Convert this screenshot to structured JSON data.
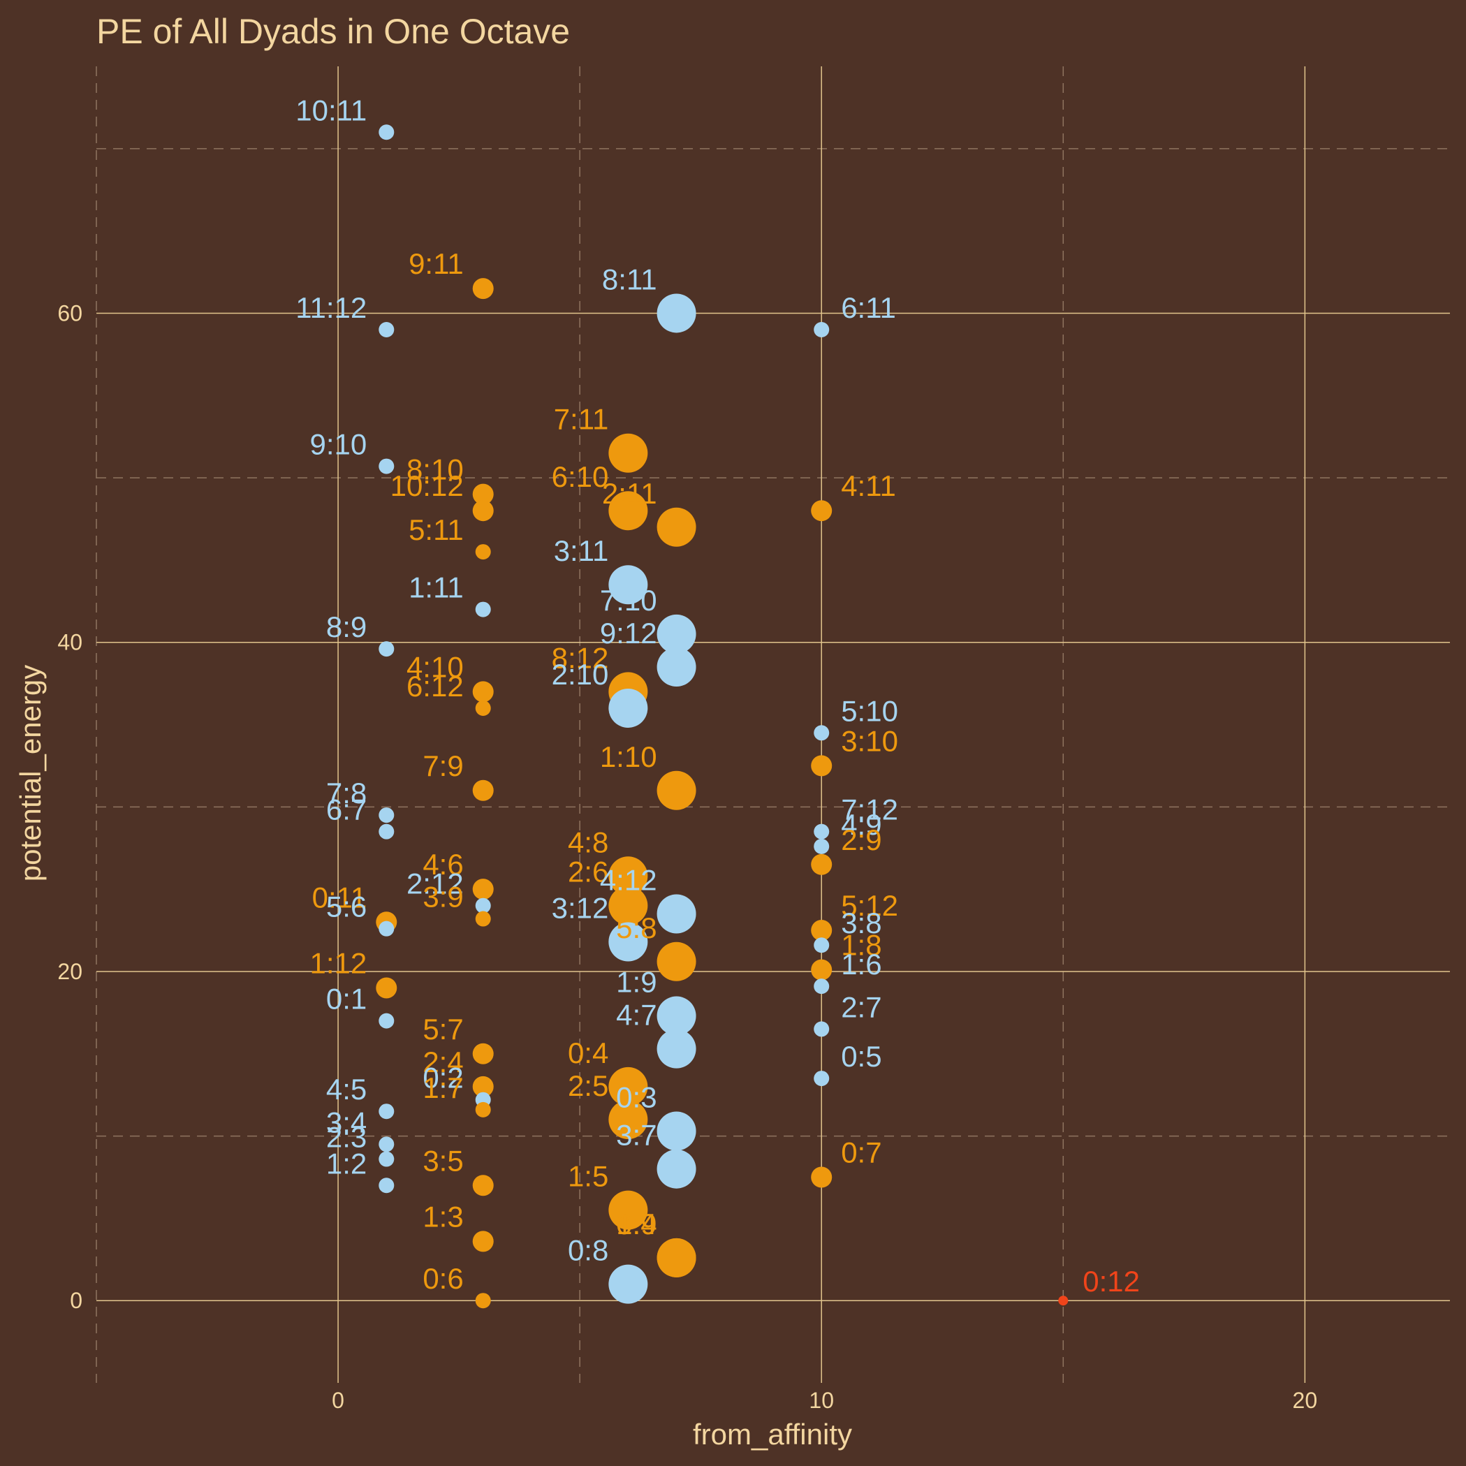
{
  "chart_data": {
    "type": "scatter",
    "title": "PE of All Dyads in One Octave",
    "xlabel": "from_affinity",
    "ylabel": "potential_energy",
    "xlim": [
      -5,
      23
    ],
    "ylim": [
      -5,
      75
    ],
    "xticks": [
      0,
      10,
      20
    ],
    "yticks": [
      0,
      20,
      40,
      60
    ],
    "grid": true,
    "legend": "none",
    "colors": {
      "background": "#4e3226",
      "text": "#f3d6a0",
      "grid_major": "#e2c58d",
      "grid_minor": "#8f7460",
      "blue": "#a6d4f0",
      "orange": "#ee990e",
      "red": "#f0441a"
    },
    "points": [
      {
        "label": "10:11",
        "x": 1,
        "y": 71.0,
        "size": 1,
        "color": "blue"
      },
      {
        "label": "11:12",
        "x": 1,
        "y": 59.0,
        "size": 1,
        "color": "blue"
      },
      {
        "label": "9:10",
        "x": 1,
        "y": 50.7,
        "size": 1,
        "color": "blue"
      },
      {
        "label": "8:9",
        "x": 1,
        "y": 39.6,
        "size": 1,
        "color": "blue"
      },
      {
        "label": "7:8",
        "x": 1,
        "y": 29.5,
        "size": 1,
        "color": "blue"
      },
      {
        "label": "6:7",
        "x": 1,
        "y": 28.5,
        "size": 1,
        "color": "blue"
      },
      {
        "label": "0:11",
        "x": 1,
        "y": 23.0,
        "size": 2,
        "color": "orange"
      },
      {
        "label": "5:6",
        "x": 1,
        "y": 22.6,
        "size": 1,
        "color": "blue"
      },
      {
        "label": "1:12",
        "x": 1,
        "y": 19.0,
        "size": 2,
        "color": "orange"
      },
      {
        "label": "0:1",
        "x": 1,
        "y": 17.0,
        "size": 1,
        "color": "blue"
      },
      {
        "label": "4:5",
        "x": 1,
        "y": 11.5,
        "size": 1,
        "color": "blue"
      },
      {
        "label": "3:4",
        "x": 1,
        "y": 9.5,
        "size": 1,
        "color": "blue"
      },
      {
        "label": "2:3",
        "x": 1,
        "y": 8.6,
        "size": 1,
        "color": "blue"
      },
      {
        "label": "1:2",
        "x": 1,
        "y": 7.0,
        "size": 1,
        "color": "blue"
      },
      {
        "label": "9:11",
        "x": 3,
        "y": 61.5,
        "size": 2,
        "color": "orange"
      },
      {
        "label": "8:10",
        "x": 3,
        "y": 49.0,
        "size": 2,
        "color": "orange"
      },
      {
        "label": "10:12",
        "x": 3,
        "y": 48.0,
        "size": 2,
        "color": "orange"
      },
      {
        "label": "5:11",
        "x": 3,
        "y": 45.5,
        "size": 1,
        "color": "orange"
      },
      {
        "label": "1:11",
        "x": 3,
        "y": 42.0,
        "size": 1,
        "color": "blue"
      },
      {
        "label": "4:10",
        "x": 3,
        "y": 37.0,
        "size": 2,
        "color": "orange"
      },
      {
        "label": "6:12",
        "x": 3,
        "y": 36.0,
        "size": 1,
        "color": "orange"
      },
      {
        "label": "7:9",
        "x": 3,
        "y": 31.0,
        "size": 2,
        "color": "orange"
      },
      {
        "label": "4:6",
        "x": 3,
        "y": 25.0,
        "size": 2,
        "color": "orange"
      },
      {
        "label": "2:12",
        "x": 3,
        "y": 24.0,
        "size": 1,
        "color": "blue"
      },
      {
        "label": "3:9",
        "x": 3,
        "y": 23.2,
        "size": 1,
        "color": "orange"
      },
      {
        "label": "5:7",
        "x": 3,
        "y": 15.0,
        "size": 2,
        "color": "orange"
      },
      {
        "label": "2:4",
        "x": 3,
        "y": 13.0,
        "size": 2,
        "color": "orange"
      },
      {
        "label": "0:2",
        "x": 3,
        "y": 12.2,
        "size": 1,
        "color": "blue"
      },
      {
        "label": "1:7",
        "x": 3,
        "y": 11.6,
        "size": 1,
        "color": "orange"
      },
      {
        "label": "3:5",
        "x": 3,
        "y": 7.0,
        "size": 2,
        "color": "orange"
      },
      {
        "label": "1:3",
        "x": 3,
        "y": 3.6,
        "size": 2,
        "color": "orange"
      },
      {
        "label": "0:6",
        "x": 3,
        "y": 0.0,
        "size": 1,
        "color": "orange"
      },
      {
        "label": "7:11",
        "x": 6,
        "y": 51.5,
        "size": 4,
        "color": "orange"
      },
      {
        "label": "6:10",
        "x": 6,
        "y": 48.0,
        "size": 4,
        "color": "orange"
      },
      {
        "label": "3:11",
        "x": 6,
        "y": 43.5,
        "size": 4,
        "color": "blue"
      },
      {
        "label": "8:12",
        "x": 6,
        "y": 37.0,
        "size": 4,
        "color": "orange"
      },
      {
        "label": "2:10",
        "x": 6,
        "y": 36.0,
        "size": 4,
        "color": "blue"
      },
      {
        "label": "4:8",
        "x": 6,
        "y": 25.8,
        "size": 4,
        "color": "orange"
      },
      {
        "label": "2:6",
        "x": 6,
        "y": 24.0,
        "size": 4,
        "color": "orange"
      },
      {
        "label": "3:12",
        "x": 6,
        "y": 21.8,
        "size": 4,
        "color": "blue"
      },
      {
        "label": "0:4",
        "x": 6,
        "y": 13.0,
        "size": 4,
        "color": "orange"
      },
      {
        "label": "2:5",
        "x": 6,
        "y": 11.0,
        "size": 4,
        "color": "orange"
      },
      {
        "label": "1:5",
        "x": 6,
        "y": 5.5,
        "size": 4,
        "color": "orange"
      },
      {
        "label": "0:8",
        "x": 6,
        "y": 1.0,
        "size": 4,
        "color": "blue"
      },
      {
        "label": "8:11",
        "x": 7,
        "y": 60.0,
        "size": 4,
        "color": "blue"
      },
      {
        "label": "2:11",
        "x": 7,
        "y": 47.0,
        "size": 4,
        "color": "orange"
      },
      {
        "label": "7:10",
        "x": 7,
        "y": 40.5,
        "size": 4,
        "color": "blue"
      },
      {
        "label": "9:12",
        "x": 7,
        "y": 38.5,
        "size": 4,
        "color": "blue"
      },
      {
        "label": "1:10",
        "x": 7,
        "y": 31.0,
        "size": 4,
        "color": "orange"
      },
      {
        "label": "4:12",
        "x": 7,
        "y": 23.5,
        "size": 4,
        "color": "blue"
      },
      {
        "label": "5:8",
        "x": 7,
        "y": 20.6,
        "size": 4,
        "color": "orange"
      },
      {
        "label": "1:9",
        "x": 7,
        "y": 17.3,
        "size": 4,
        "color": "blue"
      },
      {
        "label": "4:7",
        "x": 7,
        "y": 15.3,
        "size": 4,
        "color": "blue"
      },
      {
        "label": "0:3",
        "x": 7,
        "y": 10.3,
        "size": 4,
        "color": "blue"
      },
      {
        "label": "3:7",
        "x": 7,
        "y": 8.0,
        "size": 4,
        "color": "blue"
      },
      {
        "label": "1:4",
        "x": 7,
        "y": 2.6,
        "size": 4,
        "color": "orange"
      },
      {
        "label": "0:9",
        "x": 7,
        "y": 2.6,
        "size": 4,
        "color": "orange"
      },
      {
        "label": "6:11",
        "x": 10,
        "y": 59.0,
        "size": 1,
        "color": "blue"
      },
      {
        "label": "4:11",
        "x": 10,
        "y": 48.0,
        "size": 2,
        "color": "orange"
      },
      {
        "label": "5:10",
        "x": 10,
        "y": 34.5,
        "size": 1,
        "color": "blue"
      },
      {
        "label": "3:10",
        "x": 10,
        "y": 32.5,
        "size": 2,
        "color": "orange"
      },
      {
        "label": "7:12",
        "x": 10,
        "y": 28.5,
        "size": 1,
        "color": "blue"
      },
      {
        "label": "4:9",
        "x": 10,
        "y": 27.6,
        "size": 1,
        "color": "blue"
      },
      {
        "label": "2:9",
        "x": 10,
        "y": 26.5,
        "size": 2,
        "color": "orange"
      },
      {
        "label": "5:12",
        "x": 10,
        "y": 22.5,
        "size": 2,
        "color": "orange"
      },
      {
        "label": "3:8",
        "x": 10,
        "y": 21.6,
        "size": 1,
        "color": "blue"
      },
      {
        "label": "1:8",
        "x": 10,
        "y": 20.1,
        "size": 2,
        "color": "orange"
      },
      {
        "label": "1:6",
        "x": 10,
        "y": 19.1,
        "size": 1,
        "color": "blue"
      },
      {
        "label": "2:7",
        "x": 10,
        "y": 16.5,
        "size": 1,
        "color": "blue"
      },
      {
        "label": "0:5",
        "x": 10,
        "y": 13.5,
        "size": 1,
        "color": "blue"
      },
      {
        "label": "0:7",
        "x": 10,
        "y": 7.5,
        "size": 2,
        "color": "orange"
      },
      {
        "label": "0:12",
        "x": 15,
        "y": 0.0,
        "size": 0,
        "color": "red"
      }
    ]
  }
}
